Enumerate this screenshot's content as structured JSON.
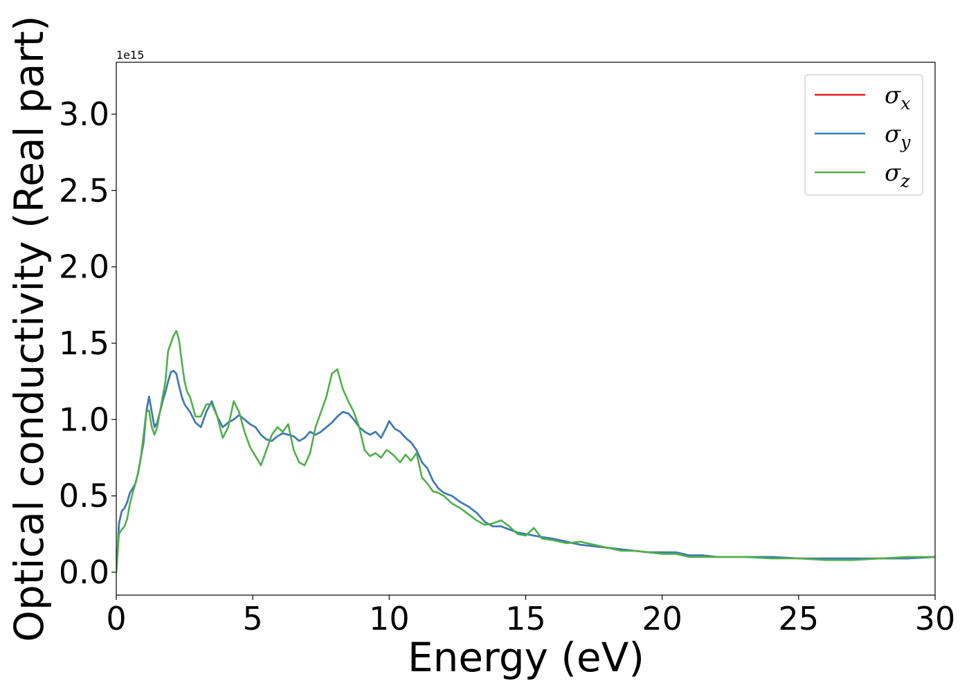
{
  "chart_data": {
    "type": "line",
    "title": "",
    "xlabel": "Energy (eV)",
    "ylabel": "Optical conductivity (Real part)",
    "y_offset_label": "1e15",
    "xlim": [
      0,
      30
    ],
    "ylim": [
      -0.15,
      3.34
    ],
    "x_ticks": [
      0,
      5,
      10,
      15,
      20,
      25,
      30
    ],
    "x_tick_labels": [
      "0",
      "5",
      "10",
      "15",
      "20",
      "25",
      "30"
    ],
    "y_ticks": [
      0.0,
      0.5,
      1.0,
      1.5,
      2.0,
      2.5,
      3.0
    ],
    "y_tick_labels": [
      "0.0",
      "0.5",
      "1.0",
      "1.5",
      "2.0",
      "2.5",
      "3.0"
    ],
    "grid": false,
    "legend_position": "top-right",
    "series": [
      {
        "name": "σx",
        "legend_main": "σ",
        "legend_sub": "x",
        "color": "#e41a1c",
        "x": [
          0,
          0.05,
          0.1,
          0.2,
          0.3,
          0.4,
          0.5,
          0.6,
          0.7,
          0.8,
          0.9,
          1.0,
          1.1,
          1.2,
          1.3,
          1.4,
          1.5,
          1.6,
          1.7,
          1.8,
          1.9,
          2.0,
          2.1,
          2.2,
          2.3,
          2.4,
          2.5,
          2.7,
          2.9,
          3.1,
          3.3,
          3.5,
          3.7,
          3.9,
          4.1,
          4.3,
          4.5,
          4.7,
          4.9,
          5.1,
          5.3,
          5.5,
          5.7,
          5.9,
          6.1,
          6.3,
          6.5,
          6.7,
          6.9,
          7.1,
          7.3,
          7.5,
          7.7,
          7.9,
          8.1,
          8.3,
          8.5,
          8.7,
          8.9,
          9.1,
          9.3,
          9.5,
          9.7,
          9.9,
          10.0,
          10.2,
          10.4,
          10.6,
          10.8,
          11.0,
          11.2,
          11.4,
          11.6,
          11.8,
          12.0,
          12.3,
          12.6,
          12.9,
          13.2,
          13.5,
          13.8,
          14.1,
          14.4,
          14.7,
          15.0,
          15.3,
          15.6,
          16.0,
          16.5,
          17.0,
          17.5,
          18.0,
          18.5,
          19.0,
          19.5,
          20.0,
          20.5,
          21.0,
          21.5,
          22.0,
          23.0,
          24.0,
          25.0,
          26.0,
          27.0,
          28.0,
          29.0,
          30.0
        ],
        "y": [
          0.0,
          0.15,
          0.32,
          0.4,
          0.42,
          0.46,
          0.52,
          0.55,
          0.58,
          0.65,
          0.75,
          0.85,
          1.05,
          1.15,
          1.05,
          0.95,
          0.98,
          1.05,
          1.12,
          1.18,
          1.25,
          1.31,
          1.32,
          1.3,
          1.22,
          1.15,
          1.1,
          1.05,
          0.98,
          0.95,
          1.05,
          1.12,
          1.02,
          0.95,
          0.98,
          1.0,
          1.03,
          1.0,
          0.97,
          0.95,
          0.9,
          0.87,
          0.86,
          0.89,
          0.91,
          0.9,
          0.89,
          0.86,
          0.88,
          0.92,
          0.9,
          0.92,
          0.95,
          0.98,
          1.02,
          1.05,
          1.04,
          1.0,
          0.95,
          0.92,
          0.9,
          0.92,
          0.88,
          0.95,
          0.99,
          0.94,
          0.92,
          0.88,
          0.85,
          0.8,
          0.72,
          0.68,
          0.6,
          0.55,
          0.52,
          0.5,
          0.46,
          0.43,
          0.39,
          0.33,
          0.3,
          0.3,
          0.28,
          0.26,
          0.25,
          0.24,
          0.23,
          0.22,
          0.2,
          0.18,
          0.17,
          0.16,
          0.15,
          0.14,
          0.13,
          0.13,
          0.13,
          0.11,
          0.11,
          0.1,
          0.1,
          0.1,
          0.09,
          0.09,
          0.09,
          0.09,
          0.09,
          0.1
        ]
      },
      {
        "name": "σy",
        "legend_main": "σ",
        "legend_sub": "y",
        "color": "#377eb8",
        "x": [
          0,
          0.05,
          0.1,
          0.2,
          0.3,
          0.4,
          0.5,
          0.6,
          0.7,
          0.8,
          0.9,
          1.0,
          1.1,
          1.2,
          1.3,
          1.4,
          1.5,
          1.6,
          1.7,
          1.8,
          1.9,
          2.0,
          2.1,
          2.2,
          2.3,
          2.4,
          2.5,
          2.7,
          2.9,
          3.1,
          3.3,
          3.5,
          3.7,
          3.9,
          4.1,
          4.3,
          4.5,
          4.7,
          4.9,
          5.1,
          5.3,
          5.5,
          5.7,
          5.9,
          6.1,
          6.3,
          6.5,
          6.7,
          6.9,
          7.1,
          7.3,
          7.5,
          7.7,
          7.9,
          8.1,
          8.3,
          8.5,
          8.7,
          8.9,
          9.1,
          9.3,
          9.5,
          9.7,
          9.9,
          10.0,
          10.2,
          10.4,
          10.6,
          10.8,
          11.0,
          11.2,
          11.4,
          11.6,
          11.8,
          12.0,
          12.3,
          12.6,
          12.9,
          13.2,
          13.5,
          13.8,
          14.1,
          14.4,
          14.7,
          15.0,
          15.3,
          15.6,
          16.0,
          16.5,
          17.0,
          17.5,
          18.0,
          18.5,
          19.0,
          19.5,
          20.0,
          20.5,
          21.0,
          21.5,
          22.0,
          23.0,
          24.0,
          25.0,
          26.0,
          27.0,
          28.0,
          29.0,
          30.0
        ],
        "y": [
          0.0,
          0.15,
          0.32,
          0.4,
          0.42,
          0.46,
          0.52,
          0.55,
          0.58,
          0.65,
          0.75,
          0.85,
          1.05,
          1.15,
          1.05,
          0.95,
          0.98,
          1.05,
          1.12,
          1.18,
          1.25,
          1.31,
          1.32,
          1.3,
          1.22,
          1.15,
          1.1,
          1.05,
          0.98,
          0.95,
          1.05,
          1.12,
          1.02,
          0.95,
          0.98,
          1.0,
          1.03,
          1.0,
          0.97,
          0.95,
          0.9,
          0.87,
          0.86,
          0.89,
          0.91,
          0.9,
          0.89,
          0.86,
          0.88,
          0.92,
          0.9,
          0.92,
          0.95,
          0.98,
          1.02,
          1.05,
          1.04,
          1.0,
          0.95,
          0.92,
          0.9,
          0.92,
          0.88,
          0.95,
          0.99,
          0.94,
          0.92,
          0.88,
          0.85,
          0.8,
          0.72,
          0.68,
          0.6,
          0.55,
          0.52,
          0.5,
          0.46,
          0.43,
          0.39,
          0.33,
          0.3,
          0.3,
          0.28,
          0.26,
          0.25,
          0.24,
          0.23,
          0.22,
          0.2,
          0.18,
          0.17,
          0.16,
          0.15,
          0.14,
          0.13,
          0.13,
          0.13,
          0.11,
          0.11,
          0.1,
          0.1,
          0.1,
          0.09,
          0.09,
          0.09,
          0.09,
          0.09,
          0.1
        ]
      },
      {
        "name": "σz",
        "legend_main": "σ",
        "legend_sub": "z",
        "color": "#4daf4a",
        "x": [
          0,
          0.1,
          0.2,
          0.3,
          0.4,
          0.5,
          0.6,
          0.7,
          0.8,
          0.9,
          1.0,
          1.1,
          1.2,
          1.3,
          1.4,
          1.5,
          1.6,
          1.7,
          1.8,
          1.9,
          2.0,
          2.1,
          2.2,
          2.3,
          2.4,
          2.5,
          2.6,
          2.7,
          2.9,
          3.1,
          3.3,
          3.5,
          3.7,
          3.9,
          4.1,
          4.3,
          4.5,
          4.7,
          4.9,
          5.1,
          5.3,
          5.5,
          5.7,
          5.9,
          6.1,
          6.3,
          6.5,
          6.7,
          6.9,
          7.1,
          7.3,
          7.5,
          7.7,
          7.9,
          8.1,
          8.3,
          8.5,
          8.7,
          8.9,
          9.1,
          9.3,
          9.5,
          9.7,
          9.9,
          10.0,
          10.2,
          10.4,
          10.6,
          10.8,
          11.0,
          11.2,
          11.4,
          11.6,
          11.8,
          12.0,
          12.3,
          12.6,
          12.9,
          13.2,
          13.5,
          13.8,
          14.1,
          14.4,
          14.7,
          15.0,
          15.3,
          15.6,
          16.0,
          16.5,
          17.0,
          17.5,
          18.0,
          18.5,
          19.0,
          19.5,
          20.0,
          20.5,
          21.0,
          21.5,
          22.0,
          23.0,
          24.0,
          25.0,
          26.0,
          27.0,
          28.0,
          29.0,
          30.0
        ],
        "y": [
          0.0,
          0.25,
          0.28,
          0.3,
          0.35,
          0.45,
          0.52,
          0.58,
          0.65,
          0.75,
          0.9,
          1.05,
          1.06,
          0.95,
          0.9,
          0.95,
          1.05,
          1.15,
          1.25,
          1.45,
          1.5,
          1.55,
          1.58,
          1.52,
          1.38,
          1.25,
          1.18,
          1.15,
          1.02,
          1.02,
          1.1,
          1.1,
          1.02,
          0.88,
          0.95,
          1.12,
          1.05,
          0.92,
          0.82,
          0.76,
          0.7,
          0.8,
          0.9,
          0.95,
          0.92,
          0.97,
          0.8,
          0.72,
          0.7,
          0.78,
          0.95,
          1.05,
          1.15,
          1.3,
          1.33,
          1.2,
          1.12,
          1.05,
          0.95,
          0.8,
          0.76,
          0.78,
          0.75,
          0.8,
          0.79,
          0.76,
          0.72,
          0.77,
          0.73,
          0.78,
          0.62,
          0.58,
          0.53,
          0.52,
          0.5,
          0.45,
          0.42,
          0.38,
          0.34,
          0.31,
          0.32,
          0.34,
          0.3,
          0.25,
          0.24,
          0.29,
          0.22,
          0.21,
          0.19,
          0.2,
          0.18,
          0.16,
          0.14,
          0.14,
          0.13,
          0.12,
          0.12,
          0.1,
          0.1,
          0.1,
          0.1,
          0.09,
          0.09,
          0.08,
          0.08,
          0.09,
          0.1,
          0.1
        ]
      }
    ]
  }
}
